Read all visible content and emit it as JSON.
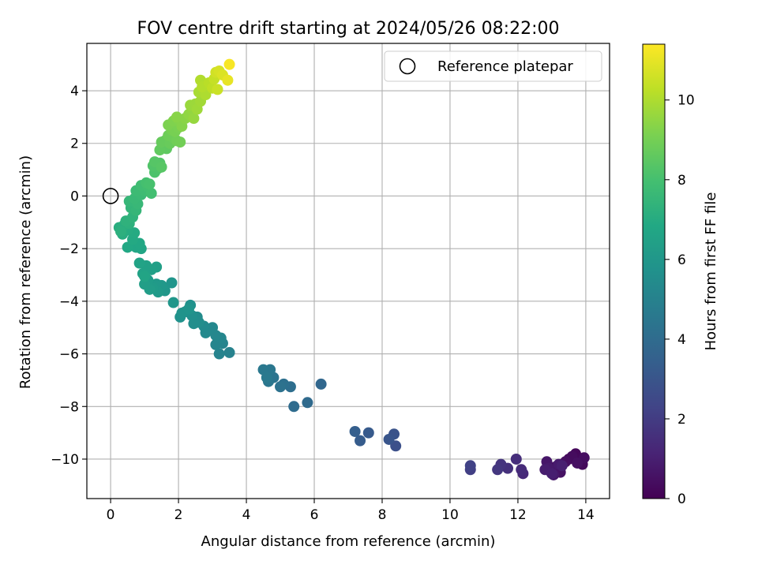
{
  "chart_data": {
    "type": "scatter",
    "title": "FOV centre drift starting at 2024/05/26 08:22:00",
    "xlabel": "Angular distance from reference (arcmin)",
    "ylabel": "Rotation from reference (arcmin)",
    "xlim": [
      -0.7,
      14.7
    ],
    "ylim": [
      -11.5,
      5.8
    ],
    "xticks": [
      0,
      2,
      4,
      6,
      8,
      10,
      12,
      14
    ],
    "yticks": [
      -10,
      -8,
      -6,
      -4,
      -2,
      0,
      2,
      4
    ],
    "grid": true,
    "legend": {
      "position": "top-right",
      "entries": [
        "Reference platepar"
      ]
    },
    "reference_point": {
      "x": 0,
      "y": 0
    },
    "colorbar": {
      "label": "Hours from first FF file",
      "colormap": "viridis",
      "range": [
        0,
        11.4
      ],
      "ticks": [
        0,
        2,
        4,
        6,
        8,
        10
      ]
    },
    "series": [
      {
        "points": [
          {
            "x": 13.8,
            "y": -10.0,
            "c": 0.1
          },
          {
            "x": 13.7,
            "y": -9.8,
            "c": 0.2
          },
          {
            "x": 13.9,
            "y": -10.2,
            "c": 0.25
          },
          {
            "x": 13.5,
            "y": -10.0,
            "c": 0.3
          },
          {
            "x": 13.6,
            "y": -9.9,
            "c": 0.35
          },
          {
            "x": 13.95,
            "y": -9.95,
            "c": 0.4
          },
          {
            "x": 13.4,
            "y": -10.1,
            "c": 0.45
          },
          {
            "x": 13.75,
            "y": -10.15,
            "c": 0.5
          },
          {
            "x": 13.25,
            "y": -10.5,
            "c": 0.55
          },
          {
            "x": 13.1,
            "y": -10.3,
            "c": 0.6
          },
          {
            "x": 12.95,
            "y": -10.45,
            "c": 0.65
          },
          {
            "x": 12.85,
            "y": -10.1,
            "c": 0.7
          },
          {
            "x": 13.05,
            "y": -10.6,
            "c": 0.75
          },
          {
            "x": 12.9,
            "y": -10.35,
            "c": 0.8
          },
          {
            "x": 13.2,
            "y": -10.2,
            "c": 0.85
          },
          {
            "x": 12.8,
            "y": -10.4,
            "c": 0.9
          },
          {
            "x": 13.0,
            "y": -10.55,
            "c": 0.95
          },
          {
            "x": 13.3,
            "y": -10.25,
            "c": 1.0
          },
          {
            "x": 12.15,
            "y": -10.55,
            "c": 1.3
          },
          {
            "x": 12.1,
            "y": -10.4,
            "c": 1.4
          },
          {
            "x": 11.95,
            "y": -10.0,
            "c": 1.5
          },
          {
            "x": 11.7,
            "y": -10.35,
            "c": 1.6
          },
          {
            "x": 11.5,
            "y": -10.2,
            "c": 1.7
          },
          {
            "x": 11.4,
            "y": -10.4,
            "c": 1.8
          },
          {
            "x": 10.6,
            "y": -10.4,
            "c": 2.1
          },
          {
            "x": 10.6,
            "y": -10.25,
            "c": 2.2
          },
          {
            "x": 8.4,
            "y": -9.5,
            "c": 2.8
          },
          {
            "x": 8.35,
            "y": -9.05,
            "c": 2.9
          },
          {
            "x": 8.2,
            "y": -9.25,
            "c": 3.0
          },
          {
            "x": 7.6,
            "y": -9.0,
            "c": 3.2
          },
          {
            "x": 7.35,
            "y": -9.3,
            "c": 3.3
          },
          {
            "x": 7.2,
            "y": -8.95,
            "c": 3.4
          },
          {
            "x": 6.2,
            "y": -7.15,
            "c": 3.8
          },
          {
            "x": 5.8,
            "y": -7.85,
            "c": 3.9
          },
          {
            "x": 5.4,
            "y": -8.0,
            "c": 4.0
          },
          {
            "x": 5.3,
            "y": -7.25,
            "c": 4.1
          },
          {
            "x": 5.1,
            "y": -7.15,
            "c": 4.2
          },
          {
            "x": 5.0,
            "y": -7.25,
            "c": 4.3
          },
          {
            "x": 4.8,
            "y": -6.9,
            "c": 4.4
          },
          {
            "x": 4.65,
            "y": -7.05,
            "c": 4.45
          },
          {
            "x": 4.7,
            "y": -6.6,
            "c": 4.5
          },
          {
            "x": 4.5,
            "y": -6.6,
            "c": 4.55
          },
          {
            "x": 4.6,
            "y": -6.9,
            "c": 4.6
          },
          {
            "x": 3.5,
            "y": -5.95,
            "c": 5.0
          },
          {
            "x": 3.2,
            "y": -6.0,
            "c": 5.05
          },
          {
            "x": 3.3,
            "y": -5.6,
            "c": 5.1
          },
          {
            "x": 3.1,
            "y": -5.65,
            "c": 5.15
          },
          {
            "x": 3.25,
            "y": -5.4,
            "c": 5.2
          },
          {
            "x": 3.1,
            "y": -5.3,
            "c": 5.25
          },
          {
            "x": 3.0,
            "y": -5.0,
            "c": 5.3
          },
          {
            "x": 2.8,
            "y": -5.2,
            "c": 5.35
          },
          {
            "x": 2.75,
            "y": -4.95,
            "c": 5.4
          },
          {
            "x": 2.55,
            "y": -4.6,
            "c": 5.45
          },
          {
            "x": 2.6,
            "y": -4.8,
            "c": 5.5
          },
          {
            "x": 2.45,
            "y": -4.85,
            "c": 5.55
          },
          {
            "x": 2.4,
            "y": -4.55,
            "c": 5.6
          },
          {
            "x": 2.2,
            "y": -4.4,
            "c": 5.65
          },
          {
            "x": 2.35,
            "y": -4.15,
            "c": 5.7
          },
          {
            "x": 2.05,
            "y": -4.6,
            "c": 5.75
          },
          {
            "x": 2.1,
            "y": -4.45,
            "c": 5.8
          },
          {
            "x": 2.3,
            "y": -4.3,
            "c": 5.85
          },
          {
            "x": 1.8,
            "y": -3.3,
            "c": 5.9
          },
          {
            "x": 1.85,
            "y": -4.05,
            "c": 5.95
          },
          {
            "x": 1.6,
            "y": -3.6,
            "c": 6.0
          },
          {
            "x": 1.5,
            "y": -3.4,
            "c": 6.05
          },
          {
            "x": 1.35,
            "y": -3.35,
            "c": 6.1
          },
          {
            "x": 1.4,
            "y": -3.65,
            "c": 6.15
          },
          {
            "x": 1.25,
            "y": -3.5,
            "c": 6.2
          },
          {
            "x": 1.1,
            "y": -3.2,
            "c": 6.25
          },
          {
            "x": 1.15,
            "y": -3.55,
            "c": 6.3
          },
          {
            "x": 1.0,
            "y": -3.35,
            "c": 6.35
          },
          {
            "x": 1.35,
            "y": -2.7,
            "c": 6.4
          },
          {
            "x": 1.2,
            "y": -2.8,
            "c": 6.45
          },
          {
            "x": 1.05,
            "y": -2.65,
            "c": 6.5
          },
          {
            "x": 0.95,
            "y": -2.95,
            "c": 6.55
          },
          {
            "x": 0.85,
            "y": -2.55,
            "c": 6.6
          },
          {
            "x": 1.0,
            "y": -3.05,
            "c": 6.65
          },
          {
            "x": 0.9,
            "y": -2.0,
            "c": 6.7
          },
          {
            "x": 0.75,
            "y": -1.95,
            "c": 6.75
          },
          {
            "x": 0.85,
            "y": -1.8,
            "c": 6.8
          },
          {
            "x": 0.5,
            "y": -1.95,
            "c": 6.85
          },
          {
            "x": 0.65,
            "y": -1.65,
            "c": 6.9
          },
          {
            "x": 0.7,
            "y": -1.4,
            "c": 6.95
          },
          {
            "x": 0.5,
            "y": -1.3,
            "c": 7.0
          },
          {
            "x": 0.35,
            "y": -1.45,
            "c": 7.05
          },
          {
            "x": 0.25,
            "y": -1.2,
            "c": 7.1
          },
          {
            "x": 0.4,
            "y": -1.1,
            "c": 7.15
          },
          {
            "x": 0.3,
            "y": -1.35,
            "c": 7.2
          },
          {
            "x": 0.55,
            "y": -1.05,
            "c": 7.25
          },
          {
            "x": 0.45,
            "y": -0.95,
            "c": 7.3
          },
          {
            "x": 0.65,
            "y": -0.8,
            "c": 7.35
          },
          {
            "x": 0.6,
            "y": -0.45,
            "c": 7.45
          },
          {
            "x": 0.75,
            "y": -0.55,
            "c": 7.5
          },
          {
            "x": 0.55,
            "y": -0.2,
            "c": 7.55
          },
          {
            "x": 0.8,
            "y": -0.3,
            "c": 7.6
          },
          {
            "x": 0.7,
            "y": -0.1,
            "c": 7.65
          },
          {
            "x": 0.9,
            "y": 0.05,
            "c": 7.7
          },
          {
            "x": 0.75,
            "y": 0.2,
            "c": 7.75
          },
          {
            "x": 1.0,
            "y": 0.2,
            "c": 7.8
          },
          {
            "x": 0.9,
            "y": 0.4,
            "c": 7.85
          },
          {
            "x": 1.1,
            "y": 0.35,
            "c": 7.9
          },
          {
            "x": 1.2,
            "y": 0.1,
            "c": 7.95
          },
          {
            "x": 1.05,
            "y": 0.5,
            "c": 8.0
          },
          {
            "x": 1.15,
            "y": 0.45,
            "c": 8.05
          },
          {
            "x": 1.3,
            "y": 0.9,
            "c": 8.15
          },
          {
            "x": 1.4,
            "y": 1.05,
            "c": 8.2
          },
          {
            "x": 1.25,
            "y": 1.15,
            "c": 8.25
          },
          {
            "x": 1.45,
            "y": 1.25,
            "c": 8.3
          },
          {
            "x": 1.3,
            "y": 1.3,
            "c": 8.35
          },
          {
            "x": 1.5,
            "y": 1.1,
            "c": 8.4
          },
          {
            "x": 1.55,
            "y": 1.9,
            "c": 8.5
          },
          {
            "x": 1.65,
            "y": 1.8,
            "c": 8.55
          },
          {
            "x": 1.45,
            "y": 1.75,
            "c": 8.6
          },
          {
            "x": 1.6,
            "y": 2.1,
            "c": 8.65
          },
          {
            "x": 1.5,
            "y": 2.05,
            "c": 8.7
          },
          {
            "x": 1.75,
            "y": 2.0,
            "c": 8.75
          },
          {
            "x": 1.85,
            "y": 2.2,
            "c": 8.8
          },
          {
            "x": 1.7,
            "y": 2.3,
            "c": 8.85
          },
          {
            "x": 1.95,
            "y": 2.1,
            "c": 8.9
          },
          {
            "x": 2.05,
            "y": 2.05,
            "c": 8.95
          },
          {
            "x": 1.8,
            "y": 2.5,
            "c": 9.0
          },
          {
            "x": 1.9,
            "y": 2.45,
            "c": 9.05
          },
          {
            "x": 2.0,
            "y": 2.6,
            "c": 9.1
          },
          {
            "x": 1.7,
            "y": 2.7,
            "c": 9.15
          },
          {
            "x": 1.85,
            "y": 2.85,
            "c": 9.2
          },
          {
            "x": 2.0,
            "y": 2.9,
            "c": 9.25
          },
          {
            "x": 2.1,
            "y": 2.65,
            "c": 9.3
          },
          {
            "x": 1.95,
            "y": 3.0,
            "c": 9.35
          },
          {
            "x": 2.2,
            "y": 2.95,
            "c": 9.4
          },
          {
            "x": 2.3,
            "y": 3.1,
            "c": 9.5
          },
          {
            "x": 2.4,
            "y": 3.25,
            "c": 9.55
          },
          {
            "x": 2.45,
            "y": 2.95,
            "c": 9.6
          },
          {
            "x": 2.35,
            "y": 3.45,
            "c": 9.65
          },
          {
            "x": 2.5,
            "y": 3.5,
            "c": 9.7
          },
          {
            "x": 2.55,
            "y": 3.3,
            "c": 9.75
          },
          {
            "x": 2.65,
            "y": 3.6,
            "c": 9.8
          },
          {
            "x": 2.6,
            "y": 3.95,
            "c": 9.9
          },
          {
            "x": 2.75,
            "y": 4.0,
            "c": 9.95
          },
          {
            "x": 2.8,
            "y": 3.85,
            "c": 10.0
          },
          {
            "x": 2.65,
            "y": 4.4,
            "c": 10.05
          },
          {
            "x": 2.7,
            "y": 4.15,
            "c": 10.1
          },
          {
            "x": 2.9,
            "y": 4.3,
            "c": 10.2
          },
          {
            "x": 3.0,
            "y": 4.1,
            "c": 10.3
          },
          {
            "x": 3.05,
            "y": 4.45,
            "c": 10.4
          },
          {
            "x": 3.15,
            "y": 4.05,
            "c": 10.5
          },
          {
            "x": 3.1,
            "y": 4.7,
            "c": 10.6
          },
          {
            "x": 3.2,
            "y": 4.75,
            "c": 10.7
          },
          {
            "x": 3.3,
            "y": 4.6,
            "c": 10.8
          },
          {
            "x": 3.45,
            "y": 4.4,
            "c": 11.0
          },
          {
            "x": 3.5,
            "y": 5.0,
            "c": 11.3
          }
        ]
      }
    ]
  }
}
